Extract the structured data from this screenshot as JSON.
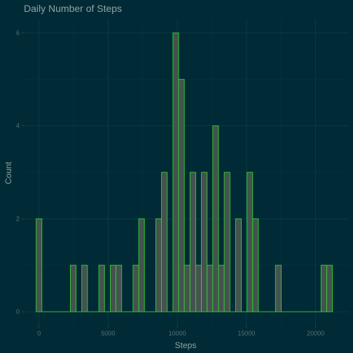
{
  "chart_data": {
    "type": "bar",
    "title": "Daily Number of Steps",
    "xlabel": "Steps",
    "ylabel": "Count",
    "xlim": [
      -1100,
      22400
    ],
    "ylim": [
      -0.3,
      6.3
    ],
    "x_ticks": [
      {
        "value": 0,
        "label": "0"
      },
      {
        "value": 5000,
        "label": "5000"
      },
      {
        "value": 10000,
        "label": "10000"
      },
      {
        "value": 15000,
        "label": "15000"
      },
      {
        "value": 20000,
        "label": "20000"
      }
    ],
    "y_ticks": [
      {
        "value": 0,
        "label": "0"
      },
      {
        "value": 2,
        "label": "2"
      },
      {
        "value": 4,
        "label": "4"
      },
      {
        "value": 6,
        "label": "6"
      }
    ],
    "bin_width": 412,
    "bin_centers": [
      0,
      412,
      824,
      1236,
      1648,
      2060,
      2472,
      2884,
      3296,
      3708,
      4120,
      4532,
      4944,
      5356,
      5768,
      6180,
      6592,
      7004,
      7416,
      7828,
      8240,
      8652,
      9064,
      9476,
      9888,
      10300,
      10712,
      11124,
      11536,
      11948,
      12360,
      12772,
      13184,
      13596,
      14008,
      14420,
      14832,
      15244,
      15656,
      16068,
      16480,
      16892,
      17304,
      17716,
      18128,
      18540,
      18952,
      19364,
      19776,
      20188,
      20600,
      21012
    ],
    "values": [
      2,
      0,
      0,
      0,
      0,
      0,
      1,
      0,
      1,
      0,
      0,
      1,
      0,
      1,
      1,
      0,
      0,
      1,
      2,
      0,
      0,
      2,
      3,
      0,
      6,
      5,
      1,
      3,
      1,
      3,
      1,
      4,
      1,
      3,
      0,
      2,
      0,
      3,
      2,
      0,
      0,
      0,
      1,
      0,
      0,
      0,
      0,
      0,
      0,
      0,
      1,
      1
    ],
    "grid": true,
    "colors": {
      "background": "#002b36",
      "bar_fill": "#45524f",
      "bar_outline": "#2fd42f"
    }
  }
}
